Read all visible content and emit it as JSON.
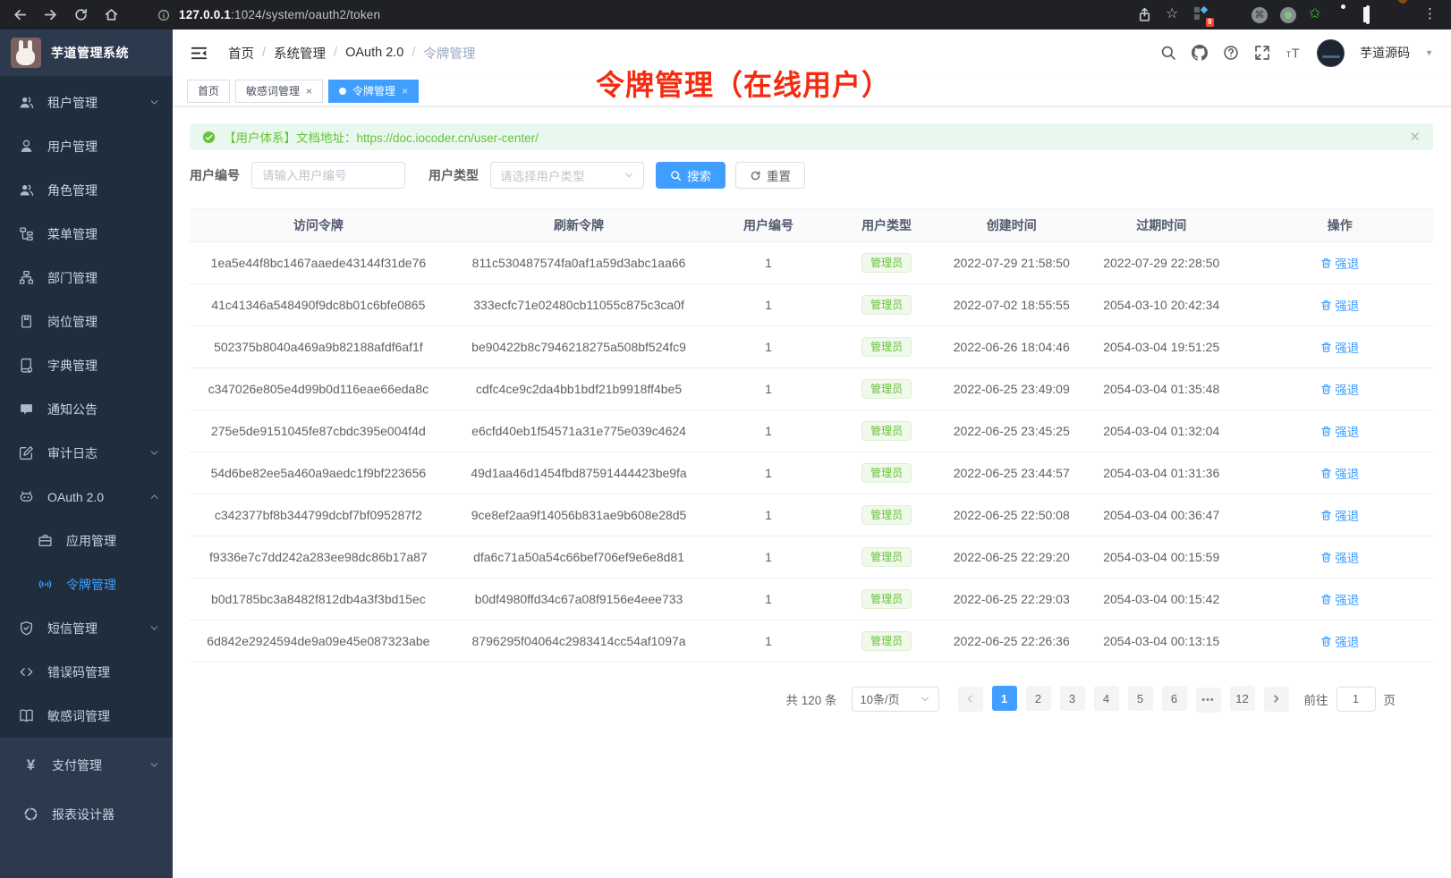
{
  "browser": {
    "url_domain": "127.0.0.1",
    "url_rest": ":1024/system/oauth2/token",
    "extension_badge": "9"
  },
  "sidebar": {
    "app_title": "芋道管理系统",
    "menu": [
      {
        "key": "tenant",
        "icon": "users-icon",
        "label": "租户管理",
        "chevron": "down"
      },
      {
        "key": "user",
        "icon": "user-icon",
        "label": "用户管理"
      },
      {
        "key": "role",
        "icon": "role-icon",
        "label": "角色管理"
      },
      {
        "key": "menu",
        "icon": "menu-tree-icon",
        "label": "菜单管理"
      },
      {
        "key": "dept",
        "icon": "dept-icon",
        "label": "部门管理"
      },
      {
        "key": "post",
        "icon": "post-icon",
        "label": "岗位管理"
      },
      {
        "key": "dict",
        "icon": "dict-icon",
        "label": "字典管理"
      },
      {
        "key": "notice",
        "icon": "notice-icon",
        "label": "通知公告"
      },
      {
        "key": "audit-log",
        "icon": "audit-icon",
        "label": "审计日志",
        "chevron": "down"
      },
      {
        "key": "oauth2",
        "icon": "oauth-icon",
        "label": "OAuth 2.0",
        "chevron": "up"
      },
      {
        "key": "oauth2-app",
        "icon": "briefcase-icon",
        "label": "应用管理",
        "sub": true
      },
      {
        "key": "oauth2-token",
        "icon": "token-icon",
        "label": "令牌管理",
        "sub": true,
        "active": true
      },
      {
        "key": "sms",
        "icon": "shield-icon",
        "label": "短信管理",
        "chevron": "down"
      },
      {
        "key": "error-code",
        "icon": "code-icon",
        "label": "错误码管理"
      },
      {
        "key": "sensitive",
        "icon": "open-book-icon",
        "label": "敏感词管理"
      }
    ],
    "bottom_menu": [
      {
        "key": "pay",
        "icon": "yen-icon",
        "label": "支付管理",
        "chevron": "down"
      },
      {
        "key": "report",
        "icon": "report-icon",
        "label": "报表设计器"
      }
    ]
  },
  "header": {
    "breadcrumb": [
      "首页",
      "系统管理",
      "OAuth 2.0",
      "令牌管理"
    ],
    "username": "芋道源码"
  },
  "tabs": [
    {
      "label": "首页"
    },
    {
      "label": "敏感词管理",
      "closable": true
    },
    {
      "label": "令牌管理",
      "closable": true,
      "active": true
    }
  ],
  "annotation": "令牌管理（在线用户）",
  "alert": {
    "prefix": "【用户体系】文档地址：",
    "link": "https://doc.iocoder.cn/user-center/"
  },
  "filters": {
    "user_id_label": "用户编号",
    "user_id_placeholder": "请输入用户编号",
    "user_type_label": "用户类型",
    "user_type_placeholder": "请选择用户类型",
    "search_label": "搜索",
    "reset_label": "重置"
  },
  "table": {
    "columns": [
      "访问令牌",
      "刷新令牌",
      "用户编号",
      "用户类型",
      "创建时间",
      "过期时间",
      "操作"
    ],
    "action_label": "强退",
    "rows": [
      {
        "access_token": "1ea5e44f8bc1467aaede43144f31de76",
        "refresh_token": "811c530487574fa0af1a59d3abc1aa66",
        "user_id": "1",
        "user_type": "管理员",
        "create_time": "2022-07-29 21:58:50",
        "expire_time": "2022-07-29 22:28:50"
      },
      {
        "access_token": "41c41346a548490f9dc8b01c6bfe0865",
        "refresh_token": "333ecfc71e02480cb11055c875c3ca0f",
        "user_id": "1",
        "user_type": "管理员",
        "create_time": "2022-07-02 18:55:55",
        "expire_time": "2054-03-10 20:42:34"
      },
      {
        "access_token": "502375b8040a469a9b82188afdf6af1f",
        "refresh_token": "be90422b8c7946218275a508bf524fc9",
        "user_id": "1",
        "user_type": "管理员",
        "create_time": "2022-06-26 18:04:46",
        "expire_time": "2054-03-04 19:51:25"
      },
      {
        "access_token": "c347026e805e4d99b0d116eae66eda8c",
        "refresh_token": "cdfc4ce9c2da4bb1bdf21b9918ff4be5",
        "user_id": "1",
        "user_type": "管理员",
        "create_time": "2022-06-25 23:49:09",
        "expire_time": "2054-03-04 01:35:48"
      },
      {
        "access_token": "275e5de9151045fe87cbdc395e004f4d",
        "refresh_token": "e6cfd40eb1f54571a31e775e039c4624",
        "user_id": "1",
        "user_type": "管理员",
        "create_time": "2022-06-25 23:45:25",
        "expire_time": "2054-03-04 01:32:04"
      },
      {
        "access_token": "54d6be82ee5a460a9aedc1f9bf223656",
        "refresh_token": "49d1aa46d1454fbd87591444423be9fa",
        "user_id": "1",
        "user_type": "管理员",
        "create_time": "2022-06-25 23:44:57",
        "expire_time": "2054-03-04 01:31:36"
      },
      {
        "access_token": "c342377bf8b344799dcbf7bf095287f2",
        "refresh_token": "9ce8ef2aa9f14056b831ae9b608e28d5",
        "user_id": "1",
        "user_type": "管理员",
        "create_time": "2022-06-25 22:50:08",
        "expire_time": "2054-03-04 00:36:47"
      },
      {
        "access_token": "f9336e7c7dd242a283ee98dc86b17a87",
        "refresh_token": "dfa6c71a50a54c66bef706ef9e6e8d81",
        "user_id": "1",
        "user_type": "管理员",
        "create_time": "2022-06-25 22:29:20",
        "expire_time": "2054-03-04 00:15:59"
      },
      {
        "access_token": "b0d1785bc3a8482f812db4a3f3bd15ec",
        "refresh_token": "b0df4980ffd34c67a08f9156e4eee733",
        "user_id": "1",
        "user_type": "管理员",
        "create_time": "2022-06-25 22:29:03",
        "expire_time": "2054-03-04 00:15:42"
      },
      {
        "access_token": "6d842e2924594de9a09e45e087323abe",
        "refresh_token": "8796295f04064c2983414cc54af1097a",
        "user_id": "1",
        "user_type": "管理员",
        "create_time": "2022-06-25 22:26:36",
        "expire_time": "2054-03-04 00:13:15"
      }
    ]
  },
  "pagination": {
    "total_label": "共 120 条",
    "page_size": "10条/页",
    "pages": [
      "1",
      "2",
      "3",
      "4",
      "5",
      "6",
      "•••",
      "12"
    ],
    "active_page": "1",
    "jump_prefix": "前往",
    "jump_value": "1",
    "jump_suffix": "页"
  },
  "colors": {
    "accent_blue": "#409eff",
    "success_green": "#67c23a",
    "annotation_red": "#f52b10",
    "sidebar_dark": "#1f2d3d"
  }
}
